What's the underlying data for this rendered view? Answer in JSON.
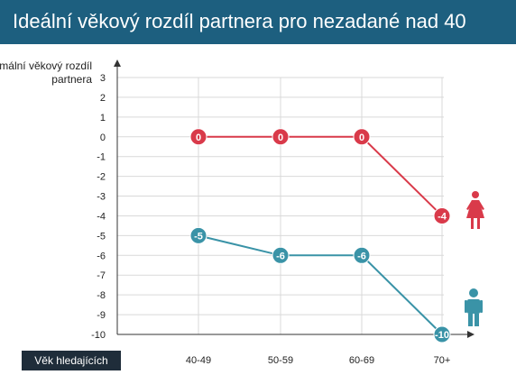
{
  "header": {
    "title": "Ideální věkový rozdíl partnera pro nezadané nad 40"
  },
  "colors": {
    "header_bg": "#1d5f7f",
    "women": "#d93a4a",
    "men": "#3a93a7",
    "grid": "#d9d9d9",
    "axis": "#333333",
    "badge_bg": "#1f2d3a"
  },
  "icons": {
    "women": "woman-icon",
    "men": "man-icon"
  },
  "chart_data": {
    "type": "line",
    "title": "Ideální věkový rozdíl partnera pro nezadané nad 40",
    "ylabel": "Minimální věkový rozdíl partnera",
    "xlabel": "Věk hledajících",
    "categories": [
      "40-49",
      "50-59",
      "60-69",
      "70+"
    ],
    "y_ticks": [
      3,
      2,
      1,
      0,
      -1,
      -2,
      -3,
      -4,
      -5,
      -6,
      -7,
      -8,
      -9,
      -10
    ],
    "ylim": [
      -10,
      3
    ],
    "grid": true,
    "series": [
      {
        "values": [
          0,
          0,
          0,
          -4
        ],
        "labels": [
          "0",
          "0",
          "0",
          "-4"
        ],
        "color": "#d93a4a",
        "icon": "woman-icon"
      },
      {
        "values": [
          -5,
          -6,
          -6,
          -10
        ],
        "labels": [
          "-5",
          "-6",
          "-6",
          "-10"
        ],
        "color": "#3a93a7",
        "icon": "man-icon"
      }
    ]
  }
}
